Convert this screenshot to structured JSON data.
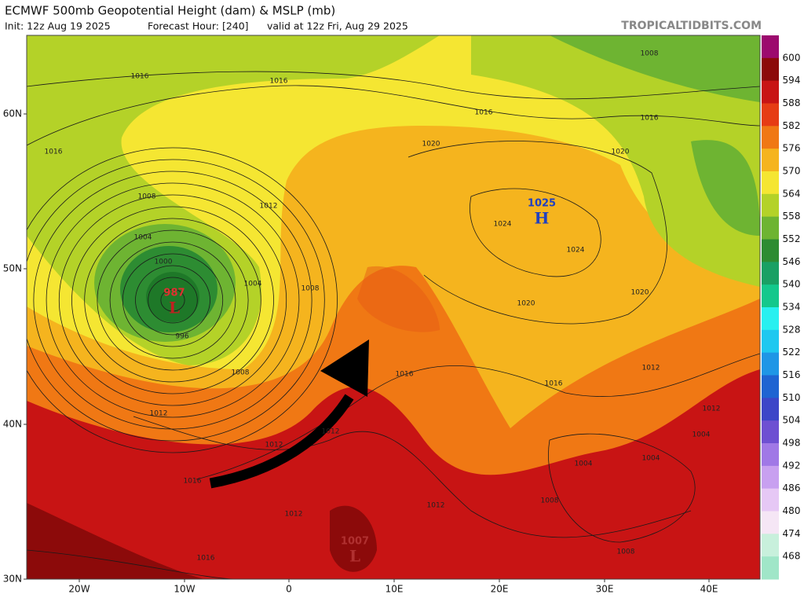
{
  "header": {
    "title": "ECMWF 500mb Geopotential Height (dam) & MSLP (mb)",
    "init": "Init: 12z Aug 19 2025",
    "forecast_hour": "Forecast Hour: [240]",
    "valid": "valid at 12z Fri, Aug 29 2025",
    "credit": "TROPICALTIDBITS.COM"
  },
  "colorbar": {
    "levels": [
      600,
      594,
      588,
      582,
      576,
      570,
      564,
      558,
      552,
      546,
      540,
      534,
      528,
      522,
      516,
      510,
      504,
      498,
      492,
      486,
      480,
      474,
      468
    ],
    "band_colors": [
      "#9c0a6e",
      "#8c0a0a",
      "#c81414",
      "#e63c14",
      "#f07814",
      "#f5b41e",
      "#f5e632",
      "#b4d228",
      "#6eb432",
      "#2d8c32",
      "#19a064",
      "#14c88c",
      "#28f0f0",
      "#1ec8f0",
      "#1e96e6",
      "#1e64d2",
      "#3c46c8",
      "#6e50d2",
      "#a078e6",
      "#c8a0f0",
      "#e6c8f5",
      "#f5e6f5",
      "#c8f0dc",
      "#a0e6c8"
    ]
  },
  "lat_labels": [
    "60N",
    "50N",
    "40N",
    "30N"
  ],
  "lon_labels": [
    "20W",
    "10W",
    "0",
    "10E",
    "20E",
    "30E",
    "40E"
  ],
  "pressure_centers": [
    {
      "value": "987",
      "letter": "L"
    },
    {
      "value": "1025",
      "letter": "H"
    },
    {
      "value": "1007",
      "letter": "L"
    }
  ],
  "isobar_labels": [
    "1016",
    "1016",
    "1016",
    "1016",
    "1016",
    "1016",
    "1016",
    "1016",
    "1016",
    "1012",
    "1012",
    "1012",
    "1012",
    "1012",
    "1012",
    "1012",
    "1012",
    "1008",
    "1008",
    "1008",
    "1008",
    "1008",
    "1008",
    "1004",
    "1004",
    "1004",
    "1004",
    "1004",
    "1000",
    "996",
    "1020",
    "1020",
    "1020",
    "1020",
    "1024",
    "1024"
  ]
}
